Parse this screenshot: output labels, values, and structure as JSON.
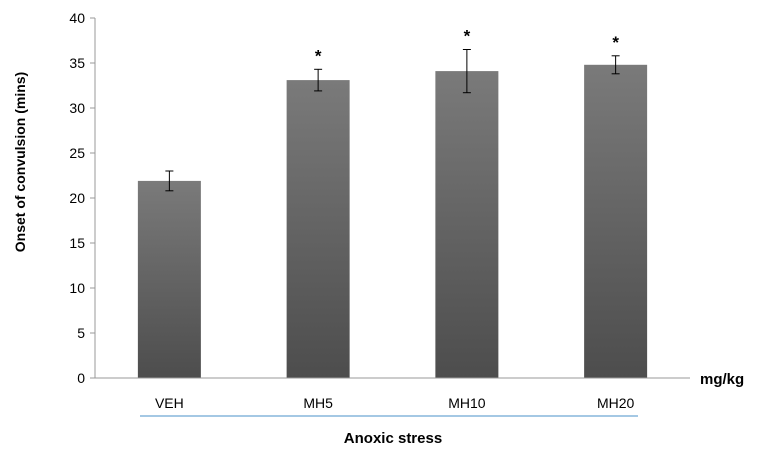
{
  "chart_data": {
    "type": "bar",
    "categories": [
      "VEH",
      "MH5",
      "MH10",
      "MH20"
    ],
    "values": [
      21.9,
      33.1,
      34.1,
      34.8
    ],
    "errors": [
      1.1,
      1.2,
      2.4,
      1.0
    ],
    "significance": [
      "",
      "*",
      "*",
      "*"
    ],
    "ylabel": "Onset of convulsion (mins)",
    "xlabel": "Anoxic stress",
    "unit_label": "mg/kg",
    "ylim": [
      0,
      40
    ],
    "yticks": [
      "0",
      "5",
      "10",
      "15",
      "20",
      "25",
      "30",
      "35",
      "40"
    ],
    "bar_color": "#5f5f5f",
    "underline_color": "#4a90c8",
    "grid": false
  }
}
